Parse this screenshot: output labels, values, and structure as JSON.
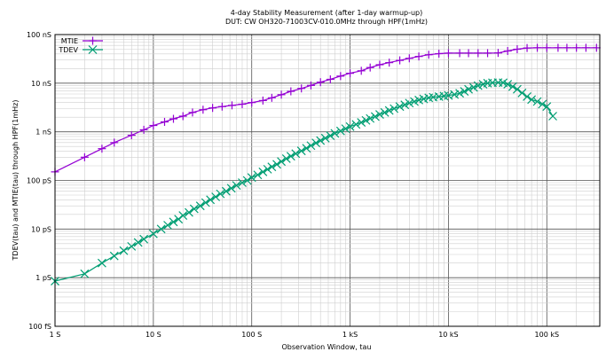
{
  "chart_data": {
    "type": "line",
    "title": "4-day Stability Measurement (after 1-day warmup-up)",
    "subtitle": "DUT: CW OH320-71003CV-010.0MHz  through HPF(1mHz)",
    "xlabel": "Observation Window, tau",
    "ylabel": "TDEV(tau) and MTIE(tau) through HPF(1mHz)",
    "xscale": "log",
    "yscale": "log",
    "xlim": [
      1,
      345600
    ],
    "ylim": [
      1e-13,
      1e-07
    ],
    "grid": true,
    "legend_position": "top-left",
    "x_ticks": [
      {
        "value": 1,
        "label": "1 S"
      },
      {
        "value": 10,
        "label": "10 S"
      },
      {
        "value": 100,
        "label": "100 S"
      },
      {
        "value": 1000,
        "label": "1 kS"
      },
      {
        "value": 10000,
        "label": "10 kS"
      },
      {
        "value": 100000,
        "label": "100 kS"
      }
    ],
    "y_ticks": [
      {
        "value": 1e-13,
        "label": "100 fS"
      },
      {
        "value": 1e-12,
        "label": "1 pS"
      },
      {
        "value": 1e-11,
        "label": "10 pS"
      },
      {
        "value": 1e-10,
        "label": "100 pS"
      },
      {
        "value": 1e-09,
        "label": "1 nS"
      },
      {
        "value": 1e-08,
        "label": "10 nS"
      },
      {
        "value": 1e-07,
        "label": "100 nS"
      }
    ],
    "series": [
      {
        "name": "MTIE",
        "color": "#9400d3",
        "marker": "plus",
        "x": [
          1,
          2,
          3,
          4,
          6,
          8,
          10,
          13,
          16,
          20,
          25,
          32,
          40,
          50,
          63,
          80,
          100,
          130,
          160,
          200,
          250,
          320,
          400,
          500,
          630,
          800,
          1000,
          1300,
          1600,
          2000,
          2500,
          3200,
          4000,
          5000,
          6300,
          8000,
          10000,
          13000,
          16000,
          20000,
          25000,
          32000,
          40000,
          50000,
          63000,
          80000,
          100000,
          130000,
          160000,
          200000,
          250000,
          320000
        ],
        "y": [
          1.5e-10,
          3e-10,
          4.5e-10,
          6e-10,
          8.5e-10,
          1.1e-09,
          1.35e-09,
          1.6e-09,
          1.85e-09,
          2.1e-09,
          2.5e-09,
          2.85e-09,
          3.1e-09,
          3.3e-09,
          3.5e-09,
          3.7e-09,
          4e-09,
          4.4e-09,
          5e-09,
          5.8e-09,
          6.8e-09,
          7.8e-09,
          9e-09,
          1.05e-08,
          1.2e-08,
          1.4e-08,
          1.6e-08,
          1.8e-08,
          2.1e-08,
          2.4e-08,
          2.65e-08,
          2.95e-08,
          3.25e-08,
          3.55e-08,
          3.85e-08,
          4.05e-08,
          4.15e-08,
          4.15e-08,
          4.15e-08,
          4.15e-08,
          4.15e-08,
          4.2e-08,
          4.6e-08,
          5e-08,
          5.3e-08,
          5.35e-08,
          5.35e-08,
          5.35e-08,
          5.35e-08,
          5.35e-08,
          5.35e-08,
          5.35e-08
        ]
      },
      {
        "name": "TDEV",
        "color": "#009e73",
        "marker": "x",
        "x": [
          1,
          2,
          3,
          4,
          5,
          6,
          7,
          8,
          10,
          12,
          14,
          16,
          18,
          20,
          23,
          26,
          30,
          34,
          38,
          43,
          48,
          55,
          62,
          70,
          80,
          90,
          100,
          115,
          130,
          145,
          160,
          180,
          200,
          225,
          250,
          280,
          320,
          360,
          400,
          450,
          500,
          560,
          630,
          700,
          800,
          900,
          1000,
          1150,
          1300,
          1450,
          1600,
          1800,
          2000,
          2250,
          2500,
          2800,
          3200,
          3600,
          4000,
          4500,
          5000,
          5600,
          6300,
          7000,
          8000,
          9000,
          10000,
          11500,
          13000,
          14500,
          16000,
          18000,
          20000,
          22500,
          25000,
          28000,
          32000,
          36000,
          40000,
          45000,
          50000,
          56000,
          63000,
          70000,
          80000,
          90000,
          100000,
          115000
        ],
        "y": [
          8.5e-13,
          1.2e-12,
          2e-12,
          2.8e-12,
          3.6e-12,
          4.4e-12,
          5.3e-12,
          6.2e-12,
          8e-12,
          1e-11,
          1.2e-11,
          1.4e-11,
          1.6e-11,
          1.9e-11,
          2.2e-11,
          2.6e-11,
          3e-11,
          3.5e-11,
          4e-11,
          4.6e-11,
          5.3e-11,
          6e-11,
          6.9e-11,
          7.9e-11,
          9e-11,
          1e-10,
          1.15e-10,
          1.3e-10,
          1.5e-10,
          1.7e-10,
          1.9e-10,
          2.15e-10,
          2.45e-10,
          2.8e-10,
          3.15e-10,
          3.55e-10,
          4.05e-10,
          4.6e-10,
          5.2e-10,
          5.9e-10,
          6.6e-10,
          7.4e-10,
          8.3e-10,
          9.3e-10,
          1.04e-09,
          1.16e-09,
          1.28e-09,
          1.42e-09,
          1.56e-09,
          1.72e-09,
          1.88e-09,
          2.06e-09,
          2.28e-09,
          2.5e-09,
          2.75e-09,
          3e-09,
          3.3e-09,
          3.6e-09,
          3.9e-09,
          4.2e-09,
          4.5e-09,
          4.75e-09,
          5e-09,
          5.15e-09,
          5.3e-09,
          5.45e-09,
          5.6e-09,
          5.85e-09,
          6.2e-09,
          6.8e-09,
          7.5e-09,
          8.2e-09,
          8.9e-09,
          9.5e-09,
          1e-08,
          1.02e-08,
          1.03e-08,
          1.02e-08,
          9.5e-09,
          8.5e-09,
          7.5e-09,
          6.3e-09,
          5.3e-09,
          4.6e-09,
          4.2e-09,
          3.7e-09,
          3.3e-09,
          2.1e-09
        ]
      }
    ]
  }
}
